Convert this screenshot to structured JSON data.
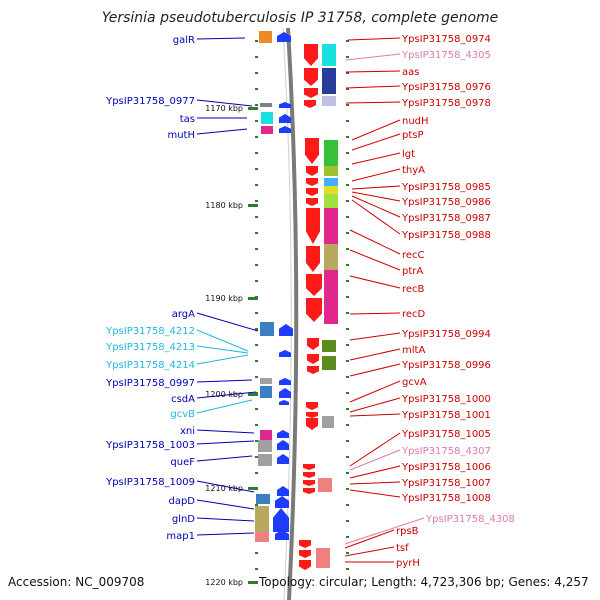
{
  "title": "Yersinia pseudotuberculosis IP 31758, complete genome",
  "footer": {
    "accession": "Accession: NC_009708",
    "topology": "Topology: circular; Length: 4,723,306 bp; Genes: 4,257"
  },
  "colors": {
    "left_label_dark": "#0000b4",
    "left_label_light": "#20b8e0",
    "right_label_red": "#cc0000",
    "right_label_pink": "#e07aa8",
    "strand_forward": "#1e3cff",
    "strand_reverse": "#ff1a1a",
    "backbone": "#7a7a7a"
  },
  "kbp_marks": [
    {
      "label": "1170 kbp",
      "pos": 1170
    },
    {
      "label": "1180 kbp",
      "pos": 1180
    },
    {
      "label": "1190 kbp",
      "pos": 1190
    },
    {
      "label": "1200 kbp",
      "pos": 1200
    },
    {
      "label": "1210 kbp",
      "pos": 1210
    },
    {
      "label": "1220 kbp",
      "pos": 1220
    }
  ],
  "left_labels": [
    {
      "text": "galR",
      "tone": "dark"
    },
    {
      "text": "YpsIP31758_0977",
      "tone": "dark"
    },
    {
      "text": "tas",
      "tone": "dark"
    },
    {
      "text": "mutH",
      "tone": "dark"
    },
    {
      "text": "argA",
      "tone": "dark"
    },
    {
      "text": "YpsIP31758_4212",
      "tone": "light"
    },
    {
      "text": "YpsIP31758_4213",
      "tone": "light"
    },
    {
      "text": "YpsIP31758_4214",
      "tone": "light"
    },
    {
      "text": "YpsIP31758_0997",
      "tone": "dark"
    },
    {
      "text": "csdA",
      "tone": "dark"
    },
    {
      "text": "gcvB",
      "tone": "light"
    },
    {
      "text": "xni",
      "tone": "dark"
    },
    {
      "text": "YpsIP31758_1003",
      "tone": "dark"
    },
    {
      "text": "queF",
      "tone": "dark"
    },
    {
      "text": "YpsIP31758_1009",
      "tone": "dark"
    },
    {
      "text": "dapD",
      "tone": "dark"
    },
    {
      "text": "glnD",
      "tone": "dark"
    },
    {
      "text": "map1",
      "tone": "dark"
    }
  ],
  "right_labels": [
    {
      "text": "YpsIP31758_0974",
      "tone": "red"
    },
    {
      "text": "YpsIP31758_4305",
      "tone": "pink"
    },
    {
      "text": "aas",
      "tone": "red"
    },
    {
      "text": "YpsIP31758_0976",
      "tone": "red"
    },
    {
      "text": "YpsIP31758_0978",
      "tone": "red"
    },
    {
      "text": "nudH",
      "tone": "red"
    },
    {
      "text": "ptsP",
      "tone": "red"
    },
    {
      "text": "lgt",
      "tone": "red"
    },
    {
      "text": "thyA",
      "tone": "red"
    },
    {
      "text": "YpsIP31758_0985",
      "tone": "red"
    },
    {
      "text": "YpsIP31758_0986",
      "tone": "red"
    },
    {
      "text": "YpsIP31758_0987",
      "tone": "red"
    },
    {
      "text": "YpsIP31758_0988",
      "tone": "red"
    },
    {
      "text": "recC",
      "tone": "red"
    },
    {
      "text": "ptrA",
      "tone": "red"
    },
    {
      "text": "recB",
      "tone": "red"
    },
    {
      "text": "recD",
      "tone": "red"
    },
    {
      "text": "YpsIP31758_0994",
      "tone": "red"
    },
    {
      "text": "mltA",
      "tone": "red"
    },
    {
      "text": "YpsIP31758_0996",
      "tone": "red"
    },
    {
      "text": "gcvA",
      "tone": "red"
    },
    {
      "text": "YpsIP31758_1000",
      "tone": "red"
    },
    {
      "text": "YpsIP31758_1001",
      "tone": "red"
    },
    {
      "text": "YpsIP31758_1005",
      "tone": "red"
    },
    {
      "text": "YpsIP31758_4307",
      "tone": "pink"
    },
    {
      "text": "YpsIP31758_1006",
      "tone": "red"
    },
    {
      "text": "YpsIP31758_1007",
      "tone": "red"
    },
    {
      "text": "YpsIP31758_1008",
      "tone": "red"
    },
    {
      "text": "YpsIP31758_4308",
      "tone": "pink"
    },
    {
      "text": "rpsB",
      "tone": "red"
    },
    {
      "text": "tsf",
      "tone": "red"
    },
    {
      "text": "pyrH",
      "tone": "red"
    }
  ]
}
